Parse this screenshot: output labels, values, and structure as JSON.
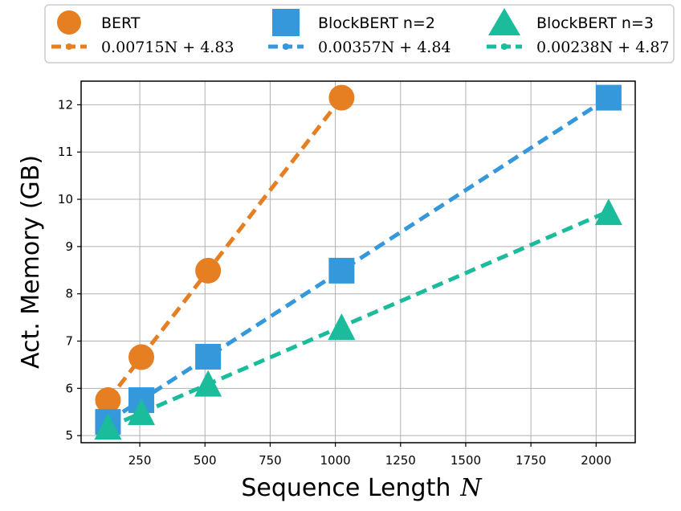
{
  "chart_data": {
    "type": "line",
    "xlabel": "Sequence Length",
    "xlabel_var": "N",
    "ylabel": "Act. Memory (GB)",
    "xlim": [
      25,
      2150
    ],
    "ylim": [
      4.85,
      12.5
    ],
    "xticks": [
      250,
      500,
      750,
      1000,
      1250,
      1500,
      1750,
      2000
    ],
    "yticks": [
      5,
      6,
      7,
      8,
      9,
      10,
      11,
      12
    ],
    "grid": true,
    "legend_position": "top",
    "series": [
      {
        "name": "BERT",
        "marker": "circle",
        "color": "#e67e22",
        "x": [
          128,
          256,
          512,
          1024
        ],
        "y": [
          5.75,
          6.66,
          8.49,
          12.15
        ],
        "fit": {
          "slope": 0.00715,
          "intercept": 4.83,
          "label": "0.00715N + 4.83"
        }
      },
      {
        "name": "BlockBERT n=2",
        "marker": "square",
        "color": "#3498db",
        "x": [
          128,
          256,
          512,
          1024,
          2048
        ],
        "y": [
          5.29,
          5.75,
          6.67,
          8.49,
          12.15
        ],
        "fit": {
          "slope": 0.00357,
          "intercept": 4.84,
          "label": "0.00357N + 4.84"
        }
      },
      {
        "name": "BlockBERT n=3",
        "marker": "triangle",
        "color": "#1abc9c",
        "x": [
          128,
          256,
          512,
          1024,
          2048
        ],
        "y": [
          5.17,
          5.48,
          6.08,
          7.28,
          9.71
        ],
        "fit": {
          "slope": 0.00238,
          "intercept": 4.87,
          "label": "0.00238N + 4.87"
        }
      }
    ]
  }
}
